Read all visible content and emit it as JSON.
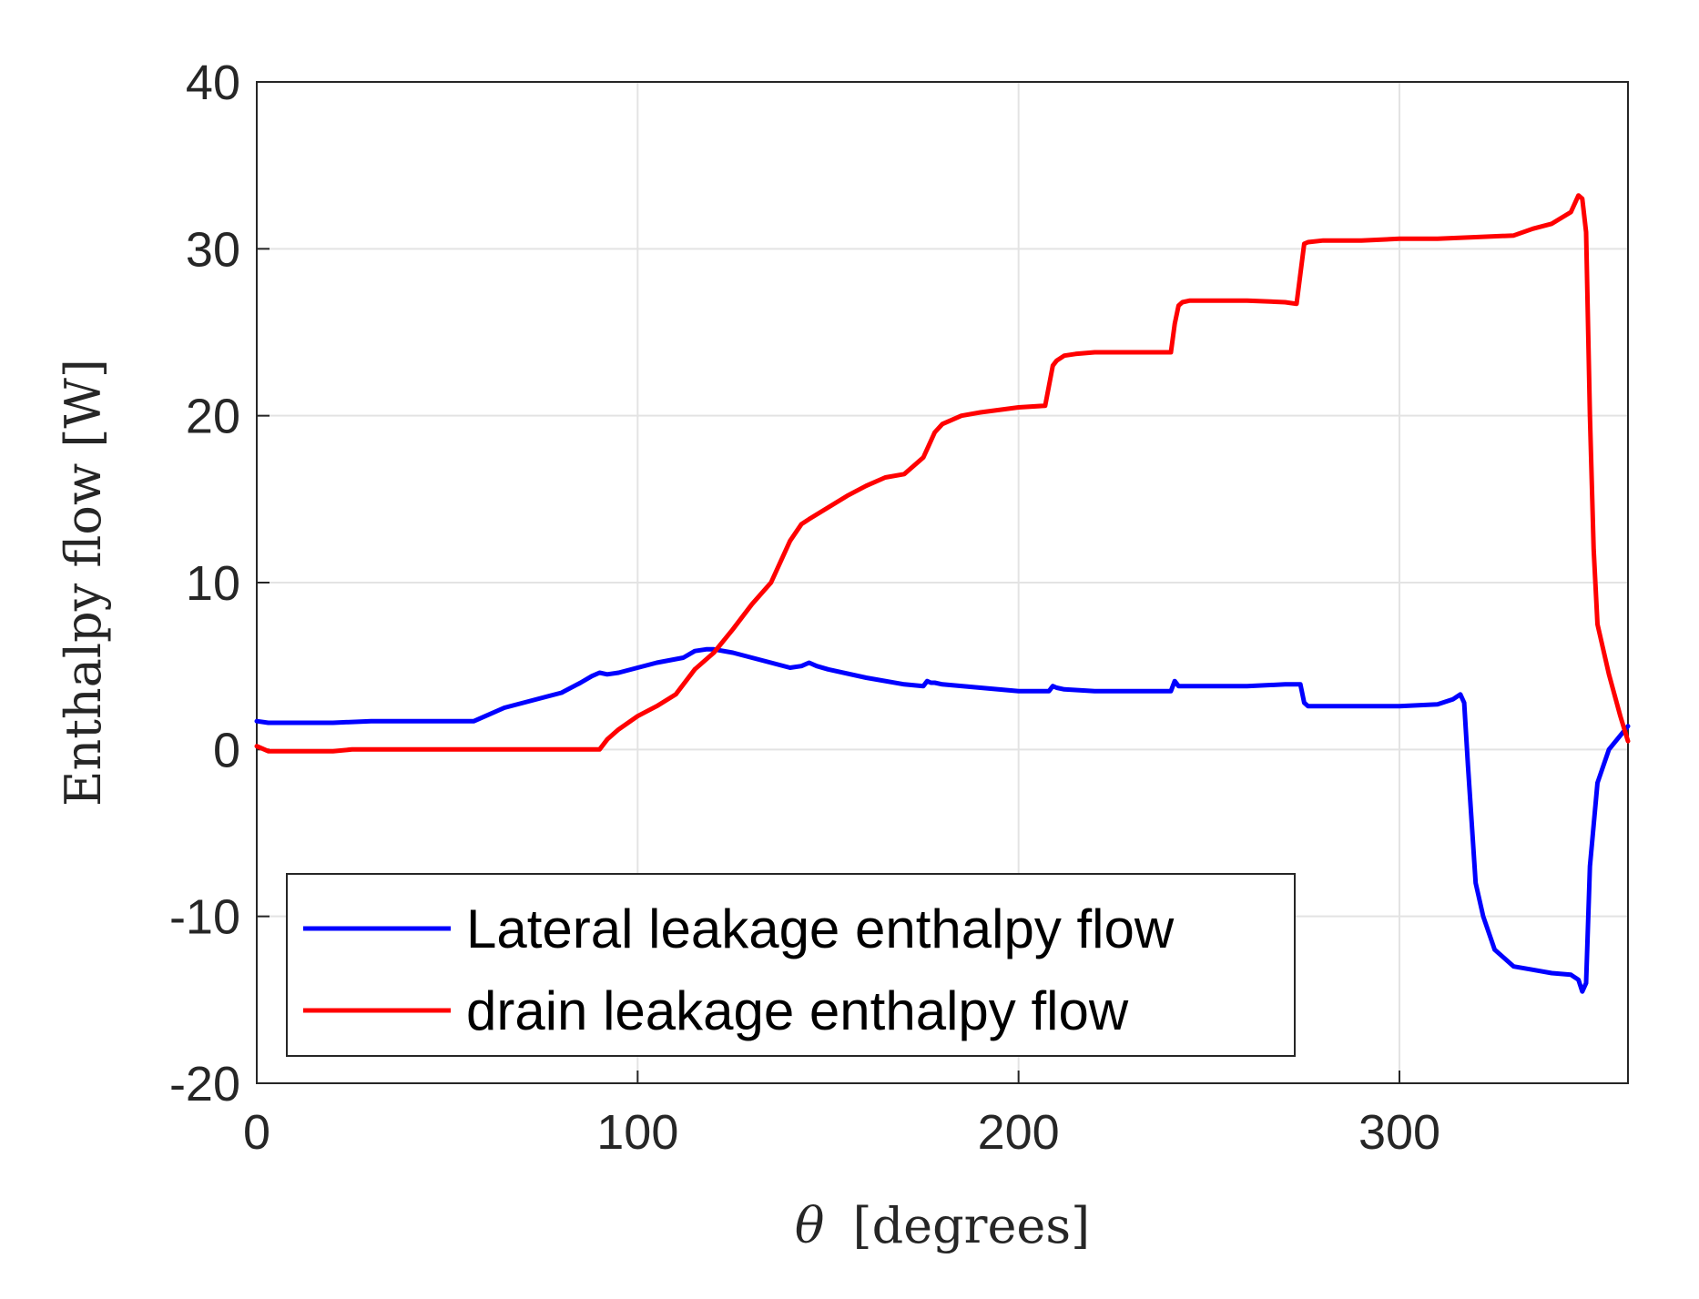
{
  "chart_data": {
    "type": "line",
    "title": "",
    "xlabel": "θ [degrees]",
    "xlabel_symbol": "θ",
    "xlabel_unit": "[degrees]",
    "ylabel": "Enthalpy flow [W]",
    "xlim": [
      0,
      360
    ],
    "ylim": [
      -20,
      40
    ],
    "xticks": [
      0,
      100,
      200,
      300
    ],
    "yticks": [
      -20,
      -10,
      0,
      10,
      20,
      30,
      40
    ],
    "xtick_labels": [
      "0",
      "100",
      "200",
      "300"
    ],
    "ytick_labels": [
      "-20",
      "-10",
      "0",
      "10",
      "20",
      "30",
      "40"
    ],
    "grid": true,
    "legend_position": "bottom-left",
    "series": [
      {
        "name": "Lateral leakage enthalpy flow",
        "color": "#0000ff",
        "x": [
          0,
          3,
          10,
          20,
          30,
          40,
          50,
          57,
          60,
          65,
          70,
          80,
          85,
          88,
          90,
          92,
          95,
          100,
          105,
          112,
          115,
          118,
          120,
          125,
          130,
          135,
          140,
          143,
          145,
          147,
          150,
          160,
          170,
          175,
          176,
          177,
          178,
          180,
          190,
          200,
          205,
          208,
          209,
          210,
          212,
          220,
          230,
          240,
          241,
          242,
          243,
          245,
          250,
          260,
          270,
          274,
          275,
          276,
          280,
          290,
          300,
          310,
          314,
          316,
          317,
          318,
          320,
          322,
          325,
          330,
          335,
          340,
          345,
          347,
          348,
          349,
          350,
          352,
          355,
          360
        ],
        "y": [
          1.7,
          1.6,
          1.6,
          1.6,
          1.7,
          1.7,
          1.7,
          1.7,
          2.0,
          2.5,
          2.8,
          3.4,
          4.0,
          4.4,
          4.6,
          4.5,
          4.6,
          4.9,
          5.2,
          5.5,
          5.9,
          6.0,
          6.0,
          5.8,
          5.5,
          5.2,
          4.9,
          5.0,
          5.2,
          5.0,
          4.8,
          4.3,
          3.9,
          3.8,
          4.1,
          4.0,
          4.0,
          3.9,
          3.7,
          3.5,
          3.5,
          3.5,
          3.8,
          3.7,
          3.6,
          3.5,
          3.5,
          3.5,
          4.1,
          3.8,
          3.8,
          3.8,
          3.8,
          3.8,
          3.9,
          3.9,
          2.8,
          2.6,
          2.6,
          2.6,
          2.6,
          2.7,
          3.0,
          3.3,
          2.8,
          -1.0,
          -8.0,
          -10.0,
          -12.0,
          -13.0,
          -13.2,
          -13.4,
          -13.5,
          -13.8,
          -14.5,
          -14.0,
          -7.0,
          -2.0,
          0.0,
          1.4
        ]
      },
      {
        "name": "drain leakage enthalpy flow",
        "color": "#ff0000",
        "x": [
          0,
          3,
          10,
          20,
          25,
          40,
          60,
          80,
          90,
          92,
          95,
          100,
          105,
          110,
          115,
          120,
          125,
          130,
          135,
          140,
          143,
          145,
          150,
          155,
          160,
          165,
          170,
          175,
          176,
          178,
          180,
          185,
          190,
          200,
          207,
          208,
          209,
          210,
          212,
          215,
          220,
          230,
          240,
          241,
          242,
          243,
          245,
          250,
          260,
          270,
          273,
          274,
          275,
          276,
          280,
          290,
          300,
          310,
          320,
          330,
          335,
          340,
          345,
          347,
          348,
          349,
          350,
          351,
          352,
          355,
          358,
          360
        ],
        "y": [
          0.2,
          -0.1,
          -0.1,
          -0.1,
          0.0,
          0.0,
          0.0,
          0.0,
          0.0,
          0.6,
          1.2,
          2.0,
          2.6,
          3.3,
          4.8,
          5.8,
          7.2,
          8.7,
          10.0,
          12.5,
          13.5,
          13.8,
          14.5,
          15.2,
          15.8,
          16.3,
          16.5,
          17.5,
          18.0,
          19.0,
          19.5,
          20.0,
          20.2,
          20.5,
          20.6,
          21.8,
          23.0,
          23.3,
          23.6,
          23.7,
          23.8,
          23.8,
          23.8,
          25.5,
          26.6,
          26.8,
          26.9,
          26.9,
          26.9,
          26.8,
          26.7,
          28.5,
          30.3,
          30.4,
          30.5,
          30.5,
          30.6,
          30.6,
          30.7,
          30.8,
          31.2,
          31.5,
          32.2,
          33.2,
          33.0,
          31.0,
          20.0,
          12.0,
          7.5,
          4.5,
          2.0,
          0.5
        ]
      }
    ]
  }
}
